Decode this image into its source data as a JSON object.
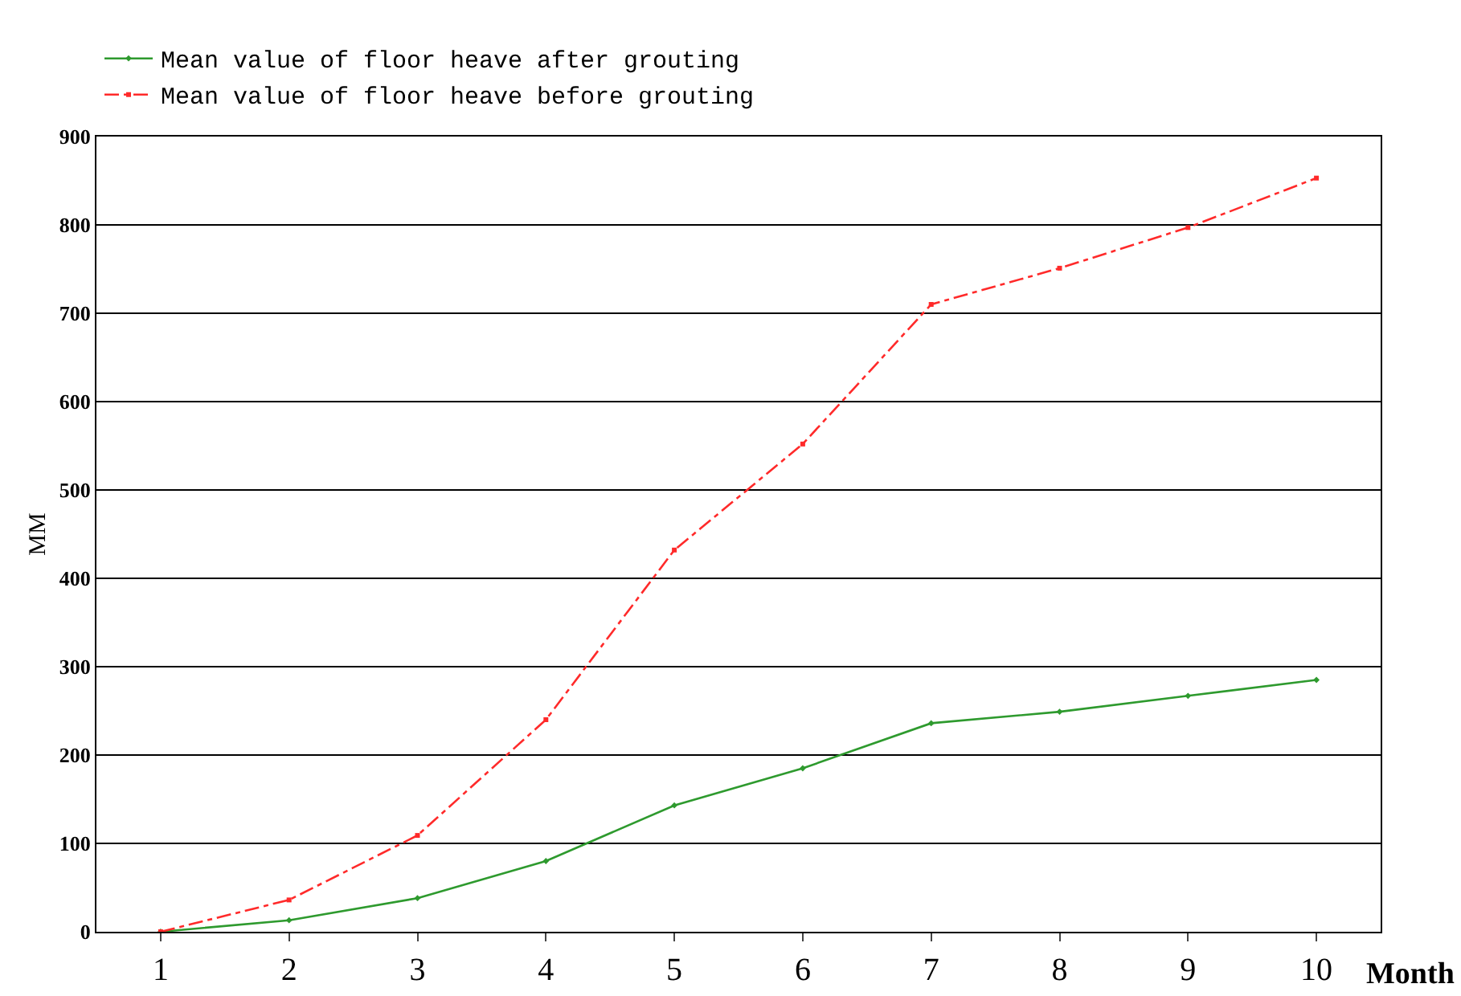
{
  "chart_data": {
    "type": "line",
    "ylabel": "MM",
    "xlabel": "Month",
    "categories": [
      "1",
      "2",
      "3",
      "4",
      "5",
      "6",
      "7",
      "8",
      "9",
      "10"
    ],
    "series": [
      {
        "name": "Mean value of floor heave after grouting",
        "color": "#2e9a2e",
        "line_style": "solid",
        "marker": "diamond",
        "values": [
          0,
          13,
          38,
          80,
          143,
          185,
          236,
          249,
          267,
          285
        ]
      },
      {
        "name": "Mean value of floor heave before grouting",
        "color": "#ff2a2a",
        "line_style": "dashed",
        "marker": "square",
        "values": [
          0,
          36,
          109,
          240,
          432,
          552,
          710,
          751,
          797,
          853
        ]
      }
    ],
    "ylim": [
      0,
      900
    ],
    "yticks": [
      0,
      100,
      200,
      300,
      400,
      500,
      600,
      700,
      800,
      900
    ],
    "grid": "y",
    "legend": "top left"
  }
}
